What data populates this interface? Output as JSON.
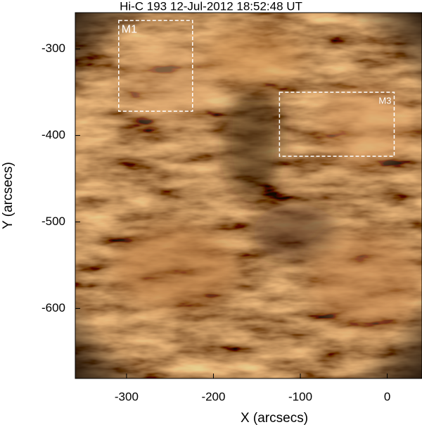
{
  "chart_data": {
    "type": "image",
    "title": "Hi-C 193 12-Jul-2012 18:52:48 UT",
    "xlabel": "X (arcsecs)",
    "ylabel": "Y (arcsecs)",
    "xlim": [
      -359,
      40
    ],
    "ylim": [
      -681,
      -258
    ],
    "xticks": [
      -300,
      -200,
      -100,
      0
    ],
    "yticks": [
      -300,
      -400,
      -500,
      -600
    ],
    "regions": [
      {
        "label": "M1",
        "xlim": [
          -309,
          -224
        ],
        "ylim": [
          -372,
          -267
        ]
      },
      {
        "label": "M3",
        "xlim": [
          -124,
          8
        ],
        "ylim": [
          -424,
          -350
        ]
      }
    ]
  }
}
